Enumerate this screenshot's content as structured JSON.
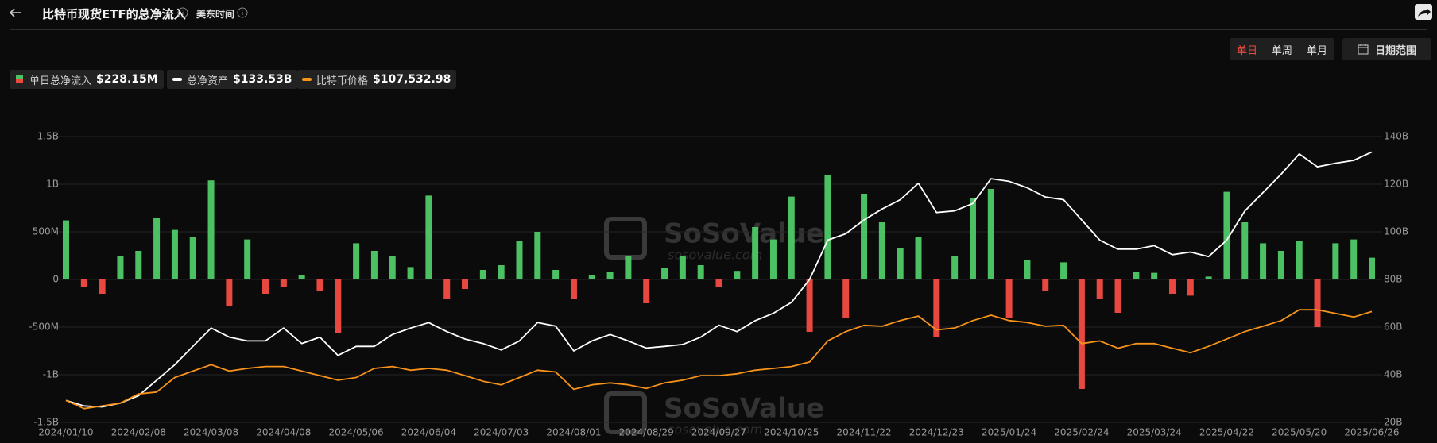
{
  "header": {
    "title": "比特币现货ETF的总净流入",
    "timezone": "美东时间"
  },
  "controls": {
    "periods": [
      "单日",
      "单周",
      "单月"
    ],
    "active_period_index": 0,
    "date_range": "日期范围"
  },
  "chart_data": {
    "type": "combo",
    "watermark": "SoSoValue",
    "watermark_sub": "sosovalue.com",
    "categories": [
      "2024/01/10",
      null,
      null,
      null,
      "2024/02/08",
      null,
      null,
      null,
      "2024/03/08",
      null,
      null,
      null,
      "2024/04/08",
      null,
      null,
      null,
      "2024/05/06",
      null,
      null,
      null,
      "2024/06/04",
      null,
      null,
      null,
      "2024/07/03",
      null,
      null,
      null,
      "2024/08/01",
      null,
      null,
      null,
      "2024/08/29",
      null,
      null,
      null,
      "2024/09/27",
      null,
      null,
      null,
      "2024/10/25",
      null,
      null,
      null,
      "2024/11/22",
      null,
      null,
      null,
      "2024/12/23",
      null,
      null,
      null,
      "2025/01/24",
      null,
      null,
      null,
      "2025/02/24",
      null,
      null,
      null,
      "2025/03/24",
      null,
      null,
      null,
      "2025/04/22",
      null,
      null,
      null,
      "2025/05/20",
      null,
      null,
      null,
      "2025/06/26"
    ],
    "series": [
      {
        "name": "单日总净流入",
        "type": "bar",
        "latest_label": "$228.15M",
        "color": "#4cc163",
        "negative_color": "#e8483f",
        "values": [
          620,
          -80,
          -150,
          250,
          300,
          650,
          520,
          450,
          1040,
          -280,
          420,
          -150,
          -80,
          50,
          -120,
          -560,
          380,
          300,
          250,
          130,
          880,
          -200,
          -100,
          100,
          150,
          400,
          500,
          100,
          -200,
          50,
          80,
          250,
          -250,
          120,
          250,
          150,
          -80,
          90,
          550,
          420,
          870,
          -550,
          1100,
          -400,
          900,
          600,
          330,
          450,
          -600,
          250,
          850,
          950,
          -400,
          200,
          -120,
          180,
          -1150,
          -200,
          -350,
          80,
          70,
          -150,
          -170,
          30,
          920,
          600,
          380,
          300,
          400,
          -500,
          380,
          420,
          228.15
        ]
      },
      {
        "name": "总净资产",
        "type": "line",
        "axis": "y2",
        "latest_label": "$133.53B",
        "color": "#ffffff",
        "values": [
          29.2,
          26.9,
          26.5,
          28.1,
          31.2,
          37.7,
          44.2,
          51.9,
          59.6,
          55.8,
          54.2,
          54.2,
          59.6,
          53.1,
          55.8,
          48.1,
          51.9,
          51.9,
          56.9,
          59.6,
          61.9,
          58.1,
          55,
          53.1,
          50.4,
          54.2,
          61.9,
          60.4,
          50,
          54.2,
          56.9,
          54.2,
          51.2,
          51.9,
          52.7,
          55.8,
          60.8,
          58.1,
          62.7,
          65.8,
          70.4,
          80,
          96.5,
          99.2,
          105,
          109.6,
          113.5,
          120.4,
          108.1,
          108.8,
          111.9,
          122.3,
          121.2,
          118.5,
          114.6,
          113.5,
          105,
          96.5,
          92.7,
          92.7,
          94.2,
          90.4,
          91.5,
          89.6,
          96.5,
          108.8,
          116.5,
          124.2,
          132.7,
          127.3,
          128.8,
          130,
          133.53
        ]
      },
      {
        "name": "比特币价格",
        "type": "line",
        "axis": "y3",
        "latest_label": "$107,532.98",
        "color": "#f7931a",
        "values": [
          45400,
          39600,
          41500,
          43500,
          49900,
          51200,
          61400,
          65900,
          70400,
          65900,
          67800,
          69100,
          69100,
          65900,
          62700,
          59500,
          61400,
          67800,
          69100,
          66500,
          67800,
          66500,
          62700,
          58800,
          56300,
          61400,
          66500,
          65300,
          53100,
          56300,
          57600,
          56300,
          53700,
          57600,
          59500,
          62700,
          62700,
          64000,
          66500,
          67800,
          69100,
          72300,
          87000,
          93500,
          97900,
          97300,
          101200,
          104400,
          94700,
          96000,
          101200,
          105000,
          101200,
          99900,
          97300,
          97900,
          85100,
          87000,
          81900,
          85100,
          85100,
          81900,
          78700,
          83200,
          88300,
          93500,
          97300,
          101200,
          108800,
          108800,
          106300,
          103700,
          107532.98
        ]
      }
    ],
    "ylim": [
      -1500,
      1500
    ],
    "yticks": [
      {
        "value": -1500,
        "label": "-1.5B"
      },
      {
        "value": -1000,
        "label": "-1B"
      },
      {
        "value": -500,
        "label": "-500M"
      },
      0,
      {
        "value": 500,
        "label": "500M"
      },
      {
        "value": 1000,
        "label": "1B"
      },
      {
        "value": 1500,
        "label": "1.5B"
      }
    ],
    "y2lim": [
      20,
      140
    ],
    "y2ticks": [
      {
        "value": 20,
        "label": "20B"
      },
      {
        "value": 40,
        "label": "40B"
      },
      {
        "value": 60,
        "label": "60B"
      },
      {
        "value": 80,
        "label": "80B"
      },
      {
        "value": 100,
        "label": "100B"
      },
      {
        "value": 120,
        "label": "120B"
      },
      {
        "value": 140,
        "label": "140B"
      }
    ],
    "y3lim": [
      30000,
      230000
    ],
    "grid": true
  }
}
